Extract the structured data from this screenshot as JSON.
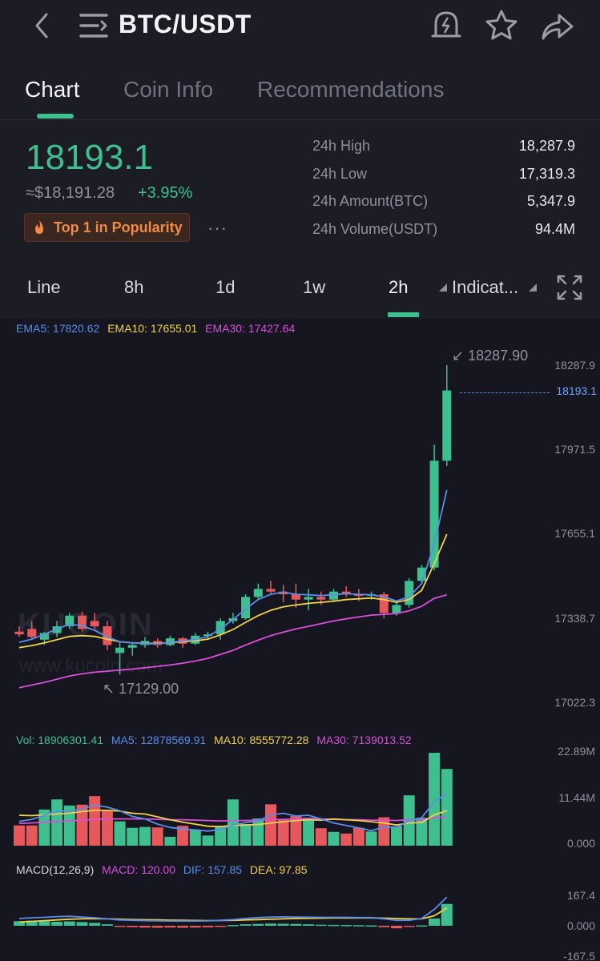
{
  "header": {
    "pair": "BTC/USDT",
    "icons": [
      "back-arrow-icon",
      "menu-icon",
      "price-alert-icon",
      "star-icon",
      "share-icon"
    ]
  },
  "tabs": [
    {
      "label": "Chart",
      "active": true
    },
    {
      "label": "Coin Info",
      "active": false
    },
    {
      "label": "Recommendations",
      "active": false
    }
  ],
  "ticker": {
    "last_price": "18193.1",
    "fiat_price": "≈$18,191.28",
    "change": "+3.95%",
    "popularity": "Top 1 in Popularity",
    "more": "···",
    "stats": [
      {
        "label": "24h High",
        "value": "18,287.9"
      },
      {
        "label": "24h Low",
        "value": "17,319.3"
      },
      {
        "label": "24h Amount(BTC)",
        "value": "5,347.9"
      },
      {
        "label": "24h Volume(USDT)",
        "value": "94.4M"
      }
    ]
  },
  "intervals": {
    "items": [
      "Line",
      "8h",
      "1d",
      "1w",
      "2h"
    ],
    "active": "2h",
    "indicators": "Indicat..."
  },
  "colors": {
    "up": "#3fbf8f",
    "down": "#e5595c",
    "ema5": "#5b8de8",
    "ema10": "#f2d14a",
    "ema30": "#d84fd8",
    "accent": "#3fbf8f"
  },
  "chart": {
    "ema_legend": {
      "ema5": "EMA5: 17820.62",
      "ema10": "EMA10: 17655.01",
      "ema30": "EMA30: 17427.64"
    },
    "watermark": "KUCOIN",
    "watermark_url": "www.kucoin.com",
    "max_label": "18287.90",
    "min_label": "17129.00",
    "current_price_label": "18193.1",
    "y_ticks": [
      "18287.9",
      "17971.5",
      "17655.1",
      "17338.7",
      "17022.3"
    ],
    "vol_legend": {
      "vol": "Vol: 18906301.41",
      "ma5": "MA5: 12878569.91",
      "ma10": "MA10: 8555772.28",
      "ma30": "MA30: 7139013.52"
    },
    "vol_ticks": [
      "22.89M",
      "11.44M",
      "0.000"
    ],
    "macd_legend": {
      "title": "MACD(12,26,9)",
      "macd": "MACD: 120.00",
      "dif": "DIF: 157.85",
      "dea": "DEA: 97.85"
    },
    "macd_ticks": [
      "167.4",
      "0.000",
      "-167.5"
    ]
  },
  "chart_data": {
    "type": "candlestick",
    "interval": "2h",
    "ylim": [
      17022.3,
      18287.9
    ],
    "candles": [
      {
        "o": 17290,
        "h": 17310,
        "l": 17270,
        "c": 17280
      },
      {
        "o": 17300,
        "h": 17330,
        "l": 17260,
        "c": 17270
      },
      {
        "o": 17260,
        "h": 17290,
        "l": 17240,
        "c": 17285
      },
      {
        "o": 17285,
        "h": 17330,
        "l": 17270,
        "c": 17310
      },
      {
        "o": 17310,
        "h": 17360,
        "l": 17300,
        "c": 17350
      },
      {
        "o": 17350,
        "h": 17365,
        "l": 17290,
        "c": 17300
      },
      {
        "o": 17330,
        "h": 17360,
        "l": 17300,
        "c": 17310
      },
      {
        "o": 17310,
        "h": 17330,
        "l": 17220,
        "c": 17240
      },
      {
        "o": 17210,
        "h": 17250,
        "l": 17129,
        "c": 17230
      },
      {
        "o": 17230,
        "h": 17250,
        "l": 17200,
        "c": 17240
      },
      {
        "o": 17240,
        "h": 17270,
        "l": 17230,
        "c": 17255
      },
      {
        "o": 17255,
        "h": 17265,
        "l": 17230,
        "c": 17240
      },
      {
        "o": 17240,
        "h": 17275,
        "l": 17235,
        "c": 17265
      },
      {
        "o": 17265,
        "h": 17270,
        "l": 17230,
        "c": 17245
      },
      {
        "o": 17245,
        "h": 17285,
        "l": 17240,
        "c": 17275
      },
      {
        "o": 17275,
        "h": 17290,
        "l": 17260,
        "c": 17280
      },
      {
        "o": 17280,
        "h": 17340,
        "l": 17260,
        "c": 17330
      },
      {
        "o": 17330,
        "h": 17360,
        "l": 17320,
        "c": 17340
      },
      {
        "o": 17340,
        "h": 17430,
        "l": 17335,
        "c": 17420
      },
      {
        "o": 17420,
        "h": 17470,
        "l": 17410,
        "c": 17450
      },
      {
        "o": 17450,
        "h": 17480,
        "l": 17430,
        "c": 17440
      },
      {
        "o": 17440,
        "h": 17465,
        "l": 17400,
        "c": 17430
      },
      {
        "o": 17430,
        "h": 17470,
        "l": 17380,
        "c": 17410
      },
      {
        "o": 17410,
        "h": 17450,
        "l": 17370,
        "c": 17420
      },
      {
        "o": 17420,
        "h": 17440,
        "l": 17390,
        "c": 17410
      },
      {
        "o": 17410,
        "h": 17450,
        "l": 17405,
        "c": 17440
      },
      {
        "o": 17440,
        "h": 17460,
        "l": 17420,
        "c": 17430
      },
      {
        "o": 17430,
        "h": 17450,
        "l": 17405,
        "c": 17425
      },
      {
        "o": 17425,
        "h": 17440,
        "l": 17410,
        "c": 17430
      },
      {
        "o": 17430,
        "h": 17440,
        "l": 17340,
        "c": 17360
      },
      {
        "o": 17360,
        "h": 17400,
        "l": 17350,
        "c": 17390
      },
      {
        "o": 17390,
        "h": 17490,
        "l": 17380,
        "c": 17480
      },
      {
        "o": 17480,
        "h": 17540,
        "l": 17470,
        "c": 17530
      },
      {
        "o": 17530,
        "h": 17990,
        "l": 17520,
        "c": 17930
      },
      {
        "o": 17930,
        "h": 18287.9,
        "l": 17910,
        "c": 18193.1
      }
    ],
    "ema5": [
      17250,
      17262,
      17280,
      17300,
      17318,
      17312,
      17295,
      17270,
      17252,
      17248,
      17245,
      17244,
      17250,
      17255,
      17260,
      17272,
      17300,
      17335,
      17375,
      17410,
      17430,
      17438,
      17430,
      17428,
      17425,
      17428,
      17432,
      17430,
      17428,
      17420,
      17405,
      17420,
      17470,
      17620,
      17820
    ],
    "ema10": [
      17230,
      17238,
      17248,
      17260,
      17272,
      17275,
      17272,
      17262,
      17252,
      17248,
      17246,
      17246,
      17249,
      17252,
      17256,
      17262,
      17278,
      17298,
      17325,
      17350,
      17370,
      17383,
      17390,
      17396,
      17400,
      17404,
      17410,
      17413,
      17416,
      17410,
      17400,
      17410,
      17445,
      17545,
      17655
    ],
    "ema30": [
      17080,
      17090,
      17100,
      17112,
      17124,
      17132,
      17138,
      17142,
      17146,
      17150,
      17155,
      17160,
      17165,
      17172,
      17180,
      17190,
      17205,
      17220,
      17240,
      17258,
      17275,
      17288,
      17300,
      17310,
      17320,
      17330,
      17338,
      17345,
      17352,
      17355,
      17358,
      17368,
      17385,
      17415,
      17428
    ],
    "volume": {
      "ylim": [
        0,
        22.89
      ],
      "unit": "M",
      "values": [
        5.0,
        5.0,
        8.9,
        11.4,
        9.9,
        10.1,
        12.2,
        8.6,
        6.0,
        4.4,
        4.6,
        4.5,
        2.2,
        4.9,
        3.9,
        2.5,
        4.6,
        11.4,
        5.3,
        6.7,
        10.2,
        6.4,
        7.3,
        6.9,
        4.3,
        3.4,
        3.0,
        4.4,
        3.5,
        7.0,
        4.8,
        12.4,
        6.9,
        22.89,
        18.9
      ],
      "ma5": [
        6.0,
        6.5,
        7.5,
        8.5,
        8.5,
        9.0,
        10.0,
        9.5,
        8.6,
        7.2,
        6.6,
        5.3,
        4.5,
        4.1,
        3.9,
        3.6,
        4.0,
        5.1,
        5.7,
        6.1,
        7.6,
        8.0,
        7.3,
        7.5,
        6.6,
        5.6,
        5.0,
        4.4,
        3.7,
        4.6,
        4.5,
        6.1,
        6.9,
        10.8,
        12.9
      ],
      "ma10": [
        7.5,
        7.4,
        7.6,
        7.8,
        8.0,
        8.4,
        8.7,
        8.7,
        8.5,
        8.0,
        7.8,
        7.1,
        6.4,
        5.8,
        5.3,
        4.8,
        4.7,
        5.0,
        5.1,
        5.2,
        5.6,
        5.9,
        6.2,
        6.4,
        6.3,
        6.6,
        6.4,
        6.2,
        5.9,
        5.6,
        5.1,
        5.6,
        5.7,
        7.6,
        8.6
      ],
      "ma30": [
        5.5,
        5.6,
        5.8,
        6.0,
        6.1,
        6.3,
        6.5,
        6.6,
        6.6,
        6.6,
        6.6,
        6.5,
        6.4,
        6.4,
        6.3,
        6.2,
        6.1,
        6.2,
        6.2,
        6.3,
        6.4,
        6.5,
        6.6,
        6.7,
        6.6,
        6.5,
        6.4,
        6.4,
        6.3,
        6.3,
        6.2,
        6.4,
        6.4,
        6.9,
        7.1
      ]
    },
    "macd": {
      "ylim": [
        -167.5,
        167.4
      ],
      "hist": [
        25,
        28,
        25,
        22,
        24,
        20,
        16,
        8,
        -4,
        -8,
        -10,
        -11,
        -10,
        -11,
        -10,
        -9,
        -6,
        4,
        8,
        10,
        12,
        11,
        10,
        8,
        6,
        5,
        4,
        3,
        2,
        -8,
        -14,
        -6,
        2,
        40,
        120
      ],
      "dif": [
        40,
        44,
        46,
        50,
        52,
        48,
        44,
        38,
        32,
        30,
        28,
        27,
        26,
        26,
        26,
        27,
        30,
        34,
        40,
        45,
        48,
        49,
        48,
        47,
        46,
        46,
        46,
        45,
        45,
        38,
        30,
        30,
        40,
        90,
        157.85
      ],
      "dea": [
        20,
        24,
        28,
        32,
        36,
        38,
        39,
        38,
        36,
        34,
        33,
        32,
        31,
        30,
        29,
        28,
        29,
        30,
        32,
        34,
        36,
        38,
        40,
        41,
        42,
        43,
        43,
        43,
        43,
        42,
        40,
        38,
        38,
        55,
        97.85
      ]
    }
  }
}
